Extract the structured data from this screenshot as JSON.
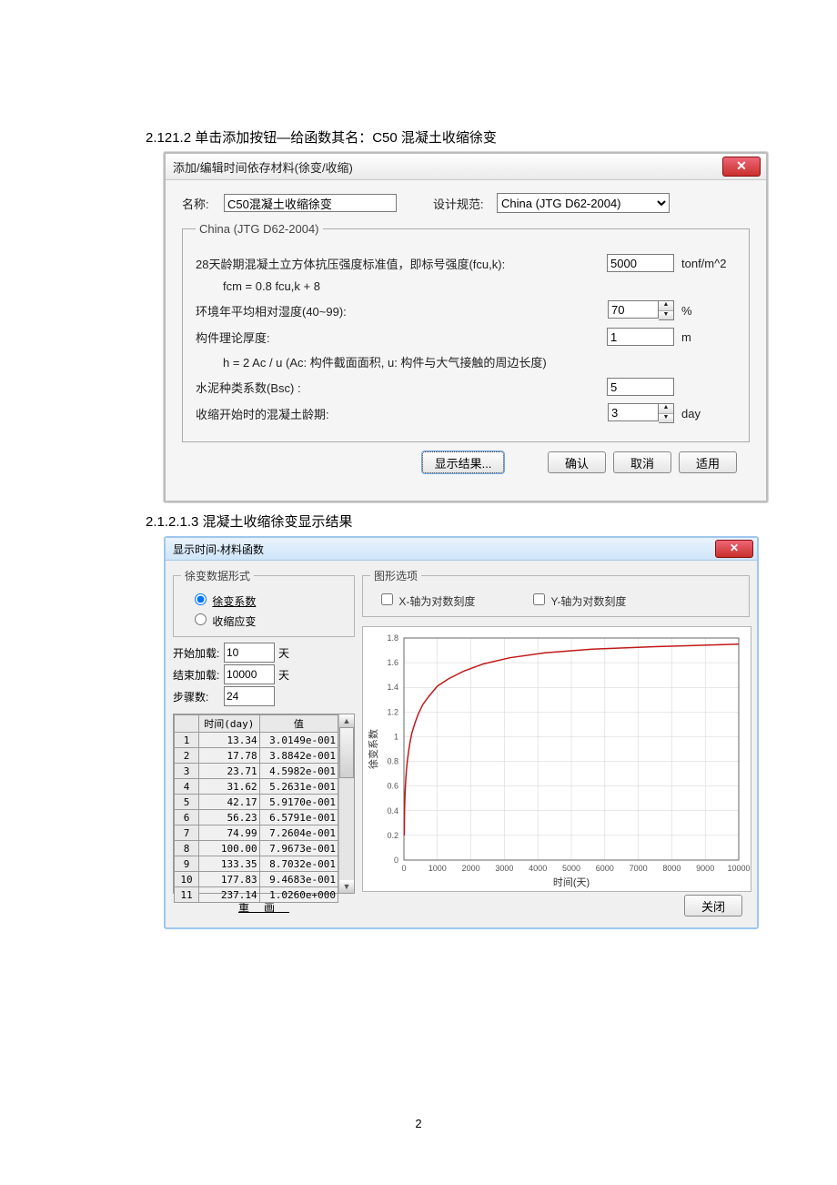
{
  "captions": {
    "c1": "2.121.2 单击添加按钮—给函数其名：C50 混凝土收缩徐变",
    "c2": "2.1.2.1.3 混凝土收缩徐变显示结果"
  },
  "page_number": "2",
  "dialog1": {
    "title": "添加/编辑时间依存材料(徐变/收缩)",
    "name_label": "名称:",
    "name_value": "C50混凝土收缩徐变",
    "spec_label": "设计规范:",
    "spec_value": "China (JTG D62-2004)",
    "group_legend": "China (JTG D62-2004)",
    "p1_label": "28天龄期混凝土立方体抗压强度标准值，即标号强度(fcu,k):",
    "p1_value": "5000",
    "p1_unit": "tonf/m^2",
    "p1b_label": "fcm = 0.8 fcu,k + 8",
    "p2_label": "环境年平均相对湿度(40~99):",
    "p2_value": "70",
    "p2_unit": "%",
    "p3_label": "构件理论厚度:",
    "p3_value": "1",
    "p3_unit": "m",
    "p3b_label": "h = 2 Ac / u (Ac: 构件截面面积, u: 构件与大气接触的周边长度)",
    "p4_label": "水泥种类系数(Bsc) :",
    "p4_value": "5",
    "p5_label": "收缩开始时的混凝土龄期:",
    "p5_value": "3",
    "p5_unit": "day",
    "btn_show": "显示结果...",
    "btn_ok": "确认",
    "btn_cancel": "取消",
    "btn_apply": "适用"
  },
  "dialog2": {
    "title": "显示时间-材料函数",
    "form_group": "徐变数据形式",
    "radio1": "徐变系数",
    "radio2": "收缩应变",
    "start_label": "开始加载:",
    "start_value": "10",
    "end_label": "结束加载:",
    "end_value": "10000",
    "day_unit": "天",
    "step_label": "步骤数:",
    "step_value": "24",
    "th_time": "时间(day)",
    "th_val": "值",
    "rows": [
      {
        "i": "1",
        "t": "13.34",
        "v": "3.0149e-001"
      },
      {
        "i": "2",
        "t": "17.78",
        "v": "3.8842e-001"
      },
      {
        "i": "3",
        "t": "23.71",
        "v": "4.5982e-001"
      },
      {
        "i": "4",
        "t": "31.62",
        "v": "5.2631e-001"
      },
      {
        "i": "5",
        "t": "42.17",
        "v": "5.9170e-001"
      },
      {
        "i": "6",
        "t": "56.23",
        "v": "6.5791e-001"
      },
      {
        "i": "7",
        "t": "74.99",
        "v": "7.2604e-001"
      },
      {
        "i": "8",
        "t": "100.00",
        "v": "7.9673e-001"
      },
      {
        "i": "9",
        "t": "133.35",
        "v": "8.7032e-001"
      },
      {
        "i": "10",
        "t": "177.83",
        "v": "9.4683e-001"
      },
      {
        "i": "11",
        "t": "237.14",
        "v": "1.0260e+000"
      }
    ],
    "redraw": "重画",
    "graph_group": "图形选项",
    "xlog_label": "X-轴为对数刻度",
    "ylog_label": "Y-轴为对数刻度",
    "btn_close": "关闭",
    "chart": {
      "xlabel": "时间(天)",
      "ylabel": "徐变系数",
      "xlim": [
        0,
        10000
      ],
      "ylim": [
        0,
        1.8
      ],
      "xtick_step": 1000,
      "ytick_step": 0.2,
      "grid_color": "#d0d0d0",
      "axis_color": "#666666",
      "tick_fontsize": 9,
      "label_fontsize": 11,
      "line_color": "#c01818",
      "line_width": 1.5,
      "background_color": "#ffffff",
      "data": [
        [
          10,
          0.2
        ],
        [
          13.34,
          0.3
        ],
        [
          17.78,
          0.39
        ],
        [
          23.71,
          0.46
        ],
        [
          31.62,
          0.53
        ],
        [
          42.17,
          0.59
        ],
        [
          56.23,
          0.66
        ],
        [
          74.99,
          0.73
        ],
        [
          100,
          0.8
        ],
        [
          133.35,
          0.87
        ],
        [
          177.83,
          0.95
        ],
        [
          237.14,
          1.03
        ],
        [
          316,
          1.1
        ],
        [
          421,
          1.18
        ],
        [
          562,
          1.26
        ],
        [
          750,
          1.33
        ],
        [
          1000,
          1.41
        ],
        [
          1334,
          1.47
        ],
        [
          1778,
          1.53
        ],
        [
          2371,
          1.59
        ],
        [
          3162,
          1.64
        ],
        [
          4217,
          1.68
        ],
        [
          5623,
          1.71
        ],
        [
          7499,
          1.73
        ],
        [
          10000,
          1.75
        ]
      ]
    }
  }
}
